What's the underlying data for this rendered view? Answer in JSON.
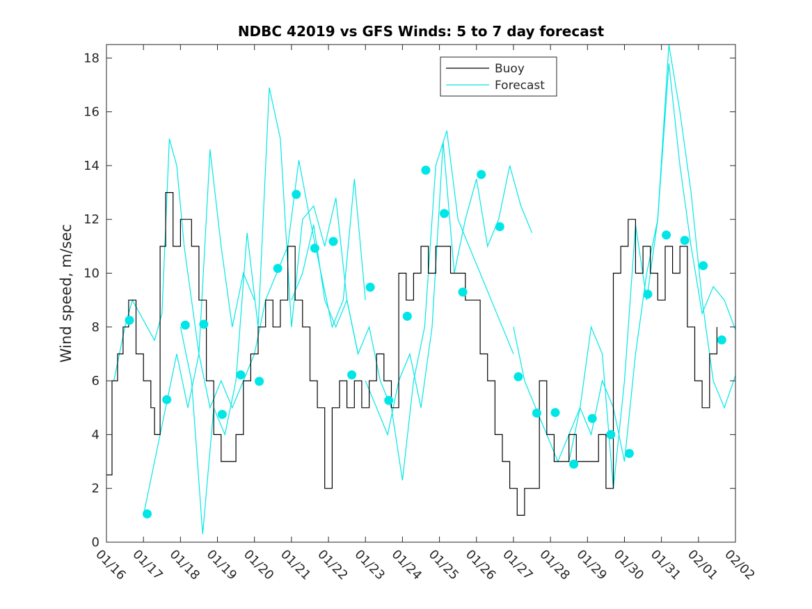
{
  "chart_data": {
    "type": "line",
    "title": "NDBC 42019 vs GFS Winds: 5 to 7 day forecast",
    "xlabel": "",
    "ylabel": "Wind speed, m/sec",
    "xlim": [
      0,
      17
    ],
    "ylim": [
      0,
      18.5
    ],
    "y_ticks": [
      0,
      2,
      4,
      6,
      8,
      10,
      12,
      14,
      16,
      18
    ],
    "x_ticks": [
      0,
      1,
      2,
      3,
      4,
      5,
      6,
      7,
      8,
      9,
      10,
      11,
      12,
      13,
      14,
      15,
      16,
      17
    ],
    "x_tick_labels": [
      "01/16",
      "01/17",
      "01/18",
      "01/19",
      "01/20",
      "01/21",
      "01/22",
      "01/23",
      "01/24",
      "01/25",
      "01/26",
      "01/27",
      "01/28",
      "01/29",
      "01/30",
      "01/31",
      "02/01",
      "02/02"
    ],
    "legend": {
      "position": "top-center",
      "entries": [
        {
          "label": "Buoy",
          "color": "#000000"
        },
        {
          "label": "Forecast",
          "color": "#00e6e6"
        }
      ]
    },
    "colors": {
      "buoy": "#000000",
      "forecast": "#00e6e6",
      "marker": "#00e6e6"
    },
    "buoy": {
      "name": "Buoy",
      "x": [
        0,
        0.15,
        0.3,
        0.45,
        0.6,
        0.8,
        1.0,
        1.2,
        1.3,
        1.45,
        1.6,
        1.8,
        2.0,
        2.3,
        2.5,
        2.7,
        2.9,
        3.1,
        3.3,
        3.5,
        3.7,
        3.9,
        4.1,
        4.3,
        4.5,
        4.7,
        4.9,
        5.1,
        5.3,
        5.5,
        5.7,
        5.9,
        6.1,
        6.3,
        6.5,
        6.7,
        6.9,
        7.1,
        7.3,
        7.5,
        7.7,
        7.9,
        8.1,
        8.3,
        8.5,
        8.7,
        8.9,
        9.1,
        9.3,
        9.5,
        9.7,
        9.9,
        10.1,
        10.3,
        10.5,
        10.7,
        10.9,
        11.1,
        11.3,
        11.5,
        11.7,
        11.9,
        12.1,
        12.3,
        12.5,
        12.7,
        12.9,
        13.1,
        13.3,
        13.5,
        13.7,
        13.9,
        14.1,
        14.3,
        14.5,
        14.7,
        14.9,
        15.1,
        15.3,
        15.5,
        15.7,
        15.9,
        16.1,
        16.3,
        16.5
      ],
      "y": [
        2.5,
        6,
        7,
        8,
        9,
        7,
        6,
        5,
        4,
        11,
        13,
        11,
        12,
        11,
        9,
        6,
        4,
        3,
        3,
        4,
        6,
        7,
        8,
        9,
        8,
        9,
        11,
        9,
        8,
        6,
        5,
        2,
        5,
        6,
        5,
        6,
        5,
        6,
        7,
        6,
        5,
        10,
        9,
        10,
        11,
        10,
        11,
        11,
        10,
        10,
        9,
        9,
        7,
        6,
        4,
        3,
        2,
        1,
        2,
        2,
        6,
        4,
        3,
        3,
        4,
        3,
        3,
        3,
        4,
        2,
        10,
        11,
        12,
        10,
        11,
        10,
        9,
        11,
        10,
        11,
        8,
        6,
        5,
        7,
        8
      ]
    },
    "forecast_series": [
      {
        "name": "Forecast",
        "x": [
          0.2,
          0.5,
          0.7,
          0.9,
          1.1,
          1.3,
          1.5,
          1.7,
          1.9,
          2.1,
          2.3,
          2.5
        ],
        "y": [
          6,
          8,
          9,
          8.5,
          8,
          7.5,
          8.5,
          15,
          14,
          11,
          9,
          7
        ]
      },
      {
        "name": "Forecast",
        "x": [
          1.0,
          1.3,
          1.6,
          1.9,
          2.2,
          2.5,
          2.8,
          3.1,
          3.4,
          3.7,
          4.0
        ],
        "y": [
          1,
          3,
          5,
          7,
          5,
          7,
          14.6,
          11,
          8,
          10,
          9
        ]
      },
      {
        "name": "Forecast",
        "x": [
          2.0,
          2.3,
          2.6,
          2.9,
          3.2,
          3.5,
          3.8,
          4.1,
          4.4,
          4.7,
          5.0,
          5.3,
          5.6,
          5.9,
          6.2,
          6.5,
          6.8
        ],
        "y": [
          8,
          6,
          0.3,
          5,
          4,
          6,
          11.5,
          8,
          16.9,
          15,
          8,
          12,
          12.5,
          11,
          12.8,
          9,
          7
        ]
      },
      {
        "name": "Forecast",
        "x": [
          2.5,
          2.8,
          3.1,
          3.4,
          3.7,
          4.0,
          4.3,
          4.6,
          4.9,
          5.2,
          5.5,
          5.8,
          6.1,
          6.4,
          6.7,
          7.0
        ],
        "y": [
          7,
          5,
          6,
          5,
          6,
          7,
          9,
          10,
          11,
          14.2,
          12,
          10,
          8,
          9,
          13.5,
          9
        ]
      },
      {
        "name": "Forecast",
        "x": [
          5.0,
          5.3,
          5.6,
          5.9,
          6.2,
          6.5,
          6.8,
          7.1,
          7.4,
          7.7,
          8.0,
          8.3,
          8.6,
          8.9,
          9.2,
          9.5,
          9.8,
          10.1,
          10.4,
          10.7,
          11.0
        ],
        "y": [
          9,
          10,
          11.8,
          9,
          8,
          9,
          7,
          8,
          6,
          5,
          2.3,
          6,
          8,
          14,
          15.3,
          12,
          11,
          10,
          9,
          8,
          7
        ]
      },
      {
        "name": "Forecast",
        "x": [
          7.0,
          7.3,
          7.6,
          7.9,
          8.2,
          8.5,
          8.8,
          9.1,
          9.4,
          9.7,
          10.0,
          10.3,
          10.6,
          10.9,
          11.2,
          11.5
        ],
        "y": [
          6,
          5,
          4,
          6,
          7,
          5,
          8,
          14.9,
          10,
          12,
          13.5,
          11,
          12,
          14,
          12.5,
          11.5
        ]
      },
      {
        "name": "Forecast",
        "x": [
          11.0,
          11.3,
          11.6,
          11.9,
          12.2,
          12.5,
          12.8,
          13.1,
          13.4,
          13.7,
          14.0,
          14.3,
          14.6,
          14.9,
          15.2,
          15.5,
          15.8,
          16.1,
          16.4,
          16.7,
          17.0
        ],
        "y": [
          8,
          6,
          5,
          4,
          3,
          4,
          5,
          4,
          6,
          5,
          3,
          7,
          10,
          12,
          18.5,
          16,
          13,
          9,
          6,
          5,
          6.2
        ]
      },
      {
        "name": "Forecast",
        "x": [
          12.5,
          12.8,
          13.1,
          13.4,
          13.7,
          14.0,
          14.3,
          14.6,
          14.9,
          15.2,
          15.5,
          15.8,
          16.1,
          16.4,
          16.7,
          17.0
        ],
        "y": [
          3,
          5,
          8,
          7,
          2,
          6,
          11.8,
          9,
          12,
          17.8,
          14,
          11,
          8.5,
          9.5,
          9,
          7.9
        ]
      }
    ],
    "forecast_markers": {
      "name": "Forecast",
      "x": [
        0.62,
        1.1,
        1.63,
        2.13,
        2.63,
        3.13,
        3.63,
        4.13,
        4.63,
        5.13,
        5.63,
        6.13,
        6.63,
        7.13,
        7.63,
        8.13,
        8.63,
        9.13,
        9.63,
        10.13,
        10.63,
        11.13,
        11.63,
        12.13,
        12.63,
        13.13,
        13.63,
        14.13,
        14.63,
        15.13,
        15.63,
        16.13,
        16.63
      ],
      "y": [
        8.25,
        1.05,
        5.3,
        8.07,
        8.1,
        4.75,
        6.22,
        5.98,
        10.18,
        12.93,
        10.93,
        11.18,
        6.22,
        9.48,
        5.27,
        8.4,
        13.83,
        12.22,
        9.3,
        13.67,
        11.73,
        6.15,
        4.8,
        4.82,
        2.9,
        4.6,
        4.0,
        3.3,
        9.22,
        11.42,
        11.22,
        10.28,
        7.52
      ]
    }
  }
}
